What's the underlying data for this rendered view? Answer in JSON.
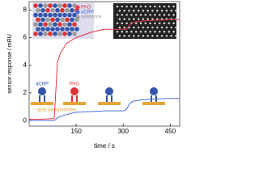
{
  "chart_data": {
    "type": "line",
    "x_label": "time / s",
    "y_label": "sensor response / mRU",
    "x": [
      0,
      40,
      80,
      86,
      90,
      100,
      120,
      150,
      200,
      240,
      300,
      310,
      320,
      330,
      360,
      400,
      450,
      480
    ],
    "series": [
      {
        "name": "PAG",
        "color": "#e8344a",
        "values": [
          0.1,
          0.1,
          0.15,
          2.5,
          4.2,
          4.9,
          5.6,
          6.0,
          6.4,
          6.6,
          6.6,
          6.6,
          6.9,
          7.1,
          7.2,
          7.25,
          7.3,
          7.3
        ]
      },
      {
        "name": "aCRP",
        "color": "#4a6fd6",
        "values": [
          0,
          0,
          0,
          0.1,
          0.2,
          0.3,
          0.45,
          0.6,
          0.65,
          0.7,
          0.7,
          0.8,
          1.2,
          1.4,
          1.5,
          1.55,
          1.6,
          1.6
        ]
      }
    ],
    "legend_extra": "reference",
    "annotations": [
      "aCRP",
      "PAG",
      "gold nanoparticles"
    ],
    "xlim": [
      0,
      480
    ],
    "xticks": [
      150,
      300,
      450
    ],
    "ylim": [
      -0.4,
      8.6
    ],
    "yticks": [
      0,
      2,
      4,
      6,
      8
    ]
  }
}
